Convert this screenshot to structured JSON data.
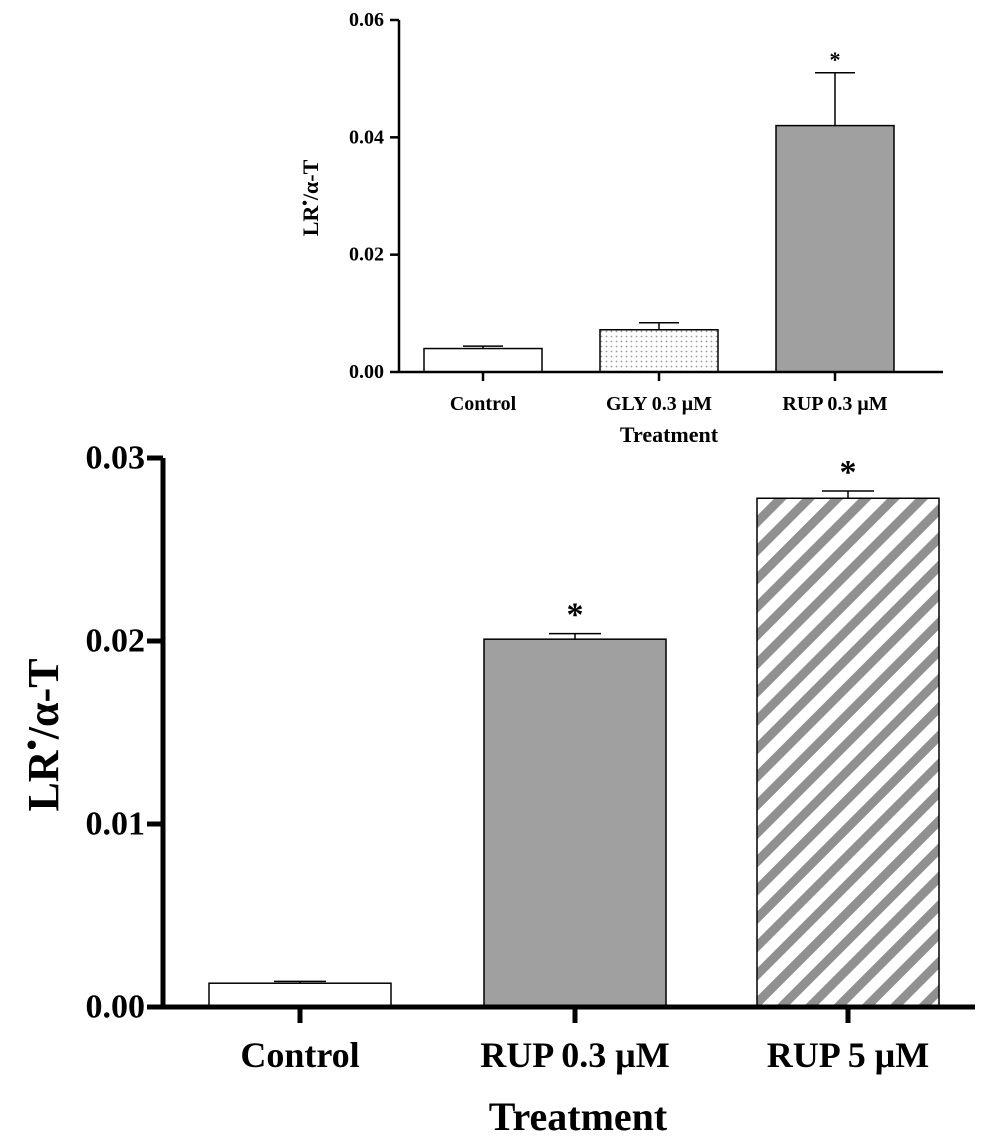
{
  "chart_data": [
    {
      "id": "top",
      "type": "bar",
      "title": "",
      "ylabel": "LR•/α-T",
      "ylabel_base": "LR",
      "ylabel_sup": "•",
      "ylabel_rest": "/α-T",
      "xlabel": "Treatment",
      "ylim": [
        0,
        0.06
      ],
      "yticks": [
        {
          "value": 0,
          "label": "0.00"
        },
        {
          "value": 0.02,
          "label": "0.02"
        },
        {
          "value": 0.04,
          "label": "0.04"
        },
        {
          "value": 0.06,
          "label": "0.06"
        }
      ],
      "categories": [
        "Control",
        "GLY 0.3 μM",
        "RUP 0.3 μM"
      ],
      "values": [
        0.004,
        0.0072,
        0.042
      ],
      "errors": [
        0.0004,
        0.0012,
        0.009
      ],
      "significance": [
        "",
        "",
        "*"
      ],
      "fills": [
        "white",
        "dots",
        "gray"
      ]
    },
    {
      "id": "bottom",
      "type": "bar",
      "title": "",
      "ylabel": "LR•/α-T",
      "ylabel_base": "LR",
      "ylabel_sup": "•",
      "ylabel_rest": "/α-T",
      "xlabel": "Treatment",
      "ylim": [
        0,
        0.03
      ],
      "yticks": [
        {
          "value": 0,
          "label": "0.00"
        },
        {
          "value": 0.01,
          "label": "0.01"
        },
        {
          "value": 0.02,
          "label": "0.02"
        },
        {
          "value": 0.03,
          "label": "0.03"
        }
      ],
      "categories": [
        "Control",
        "RUP 0.3 μM",
        "RUP 5 μM"
      ],
      "values": [
        0.0013,
        0.0201,
        0.0278
      ],
      "errors": [
        0.0001,
        0.0003,
        0.0004
      ],
      "significance": [
        "",
        "*",
        "*"
      ],
      "fills": [
        "white",
        "gray",
        "stripes"
      ]
    }
  ],
  "colors": {
    "bar_gray": "#a0a0a0",
    "bar_white": "#ffffff",
    "stripe": "#909090",
    "dot": "#9a9a9a",
    "axis": "#000000"
  }
}
